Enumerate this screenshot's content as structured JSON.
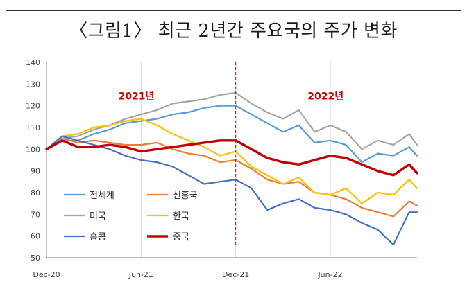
{
  "figure": {
    "title": "〈그림1〉 최근 2년간 주요국의 주가 변화"
  },
  "chart_data": {
    "type": "line",
    "title": "〈그림1〉 최근 2년간 주요국의 주가 변화",
    "xlabel": "",
    "ylabel": "",
    "x_tick_labels": [
      "Dec-20",
      "Jun-21",
      "Dec-21",
      "Jun-22"
    ],
    "x_tick_positions": [
      0,
      6,
      12,
      18
    ],
    "xlim": [
      0,
      23.5
    ],
    "ylim": [
      50,
      140
    ],
    "y_ticks": [
      50,
      60,
      70,
      80,
      90,
      100,
      110,
      120,
      130,
      140
    ],
    "grid": "vertical",
    "legend_position": "bottom-left",
    "annotations": [
      {
        "text": "2021년",
        "x": 5.7,
        "y": 123,
        "color": "#cc0000"
      },
      {
        "text": "2022년",
        "x": 17.7,
        "y": 123,
        "color": "#cc0000"
      }
    ],
    "reference_line": {
      "x": 12,
      "style": "dashed",
      "color": "#cc0000"
    },
    "x": [
      0,
      1,
      2,
      3,
      4,
      5,
      6,
      7,
      8,
      9,
      10,
      11,
      12,
      13,
      14,
      15,
      16,
      17,
      18,
      19,
      20,
      21,
      22,
      23,
      23.5
    ],
    "series": [
      {
        "name": "전세계",
        "color": "#5b9bd5",
        "width": 2.2,
        "values": [
          100,
          104,
          104,
          107,
          109,
          112,
          113,
          114,
          116,
          117,
          119,
          120,
          120,
          116,
          112,
          108,
          111,
          103,
          104,
          102,
          94,
          98,
          97,
          101,
          97
        ]
      },
      {
        "name": "신흥국",
        "color": "#ed7d31",
        "width": 2.2,
        "values": [
          100,
          105,
          103,
          104,
          103,
          102,
          102,
          103,
          100,
          98,
          97,
          94,
          95,
          91,
          86,
          84,
          85,
          80,
          79,
          77,
          73,
          71,
          69,
          76,
          74
        ]
      },
      {
        "name": "미국",
        "color": "#a5a5a5",
        "width": 2.2,
        "values": [
          100,
          105,
          106,
          109,
          111,
          114,
          116,
          118,
          121,
          122,
          123,
          125,
          126,
          121,
          117,
          114,
          118,
          108,
          111,
          108,
          100,
          104,
          102,
          107,
          102
        ]
      },
      {
        "name": "한국",
        "color": "#ffc000",
        "width": 2.2,
        "values": [
          100,
          106,
          107,
          110,
          111,
          113,
          114,
          111,
          107,
          104,
          101,
          97,
          99,
          92,
          88,
          84,
          87,
          80,
          79,
          82,
          75,
          80,
          79,
          86,
          82
        ]
      },
      {
        "name": "홍콩",
        "color": "#4472c4",
        "width": 2.2,
        "values": [
          100,
          106,
          104,
          102,
          100,
          97,
          95,
          94,
          92,
          88,
          84,
          85,
          86,
          82,
          72,
          75,
          77,
          73,
          72,
          70,
          66,
          63,
          56,
          71,
          71
        ]
      },
      {
        "name": "중국",
        "color": "#c00000",
        "width": 3.4,
        "values": [
          100,
          104,
          101,
          101,
          102,
          101,
          99,
          100,
          101,
          102,
          103,
          104,
          104,
          100,
          96,
          94,
          93,
          95,
          97,
          96,
          93,
          90,
          88,
          93,
          89
        ]
      }
    ]
  }
}
